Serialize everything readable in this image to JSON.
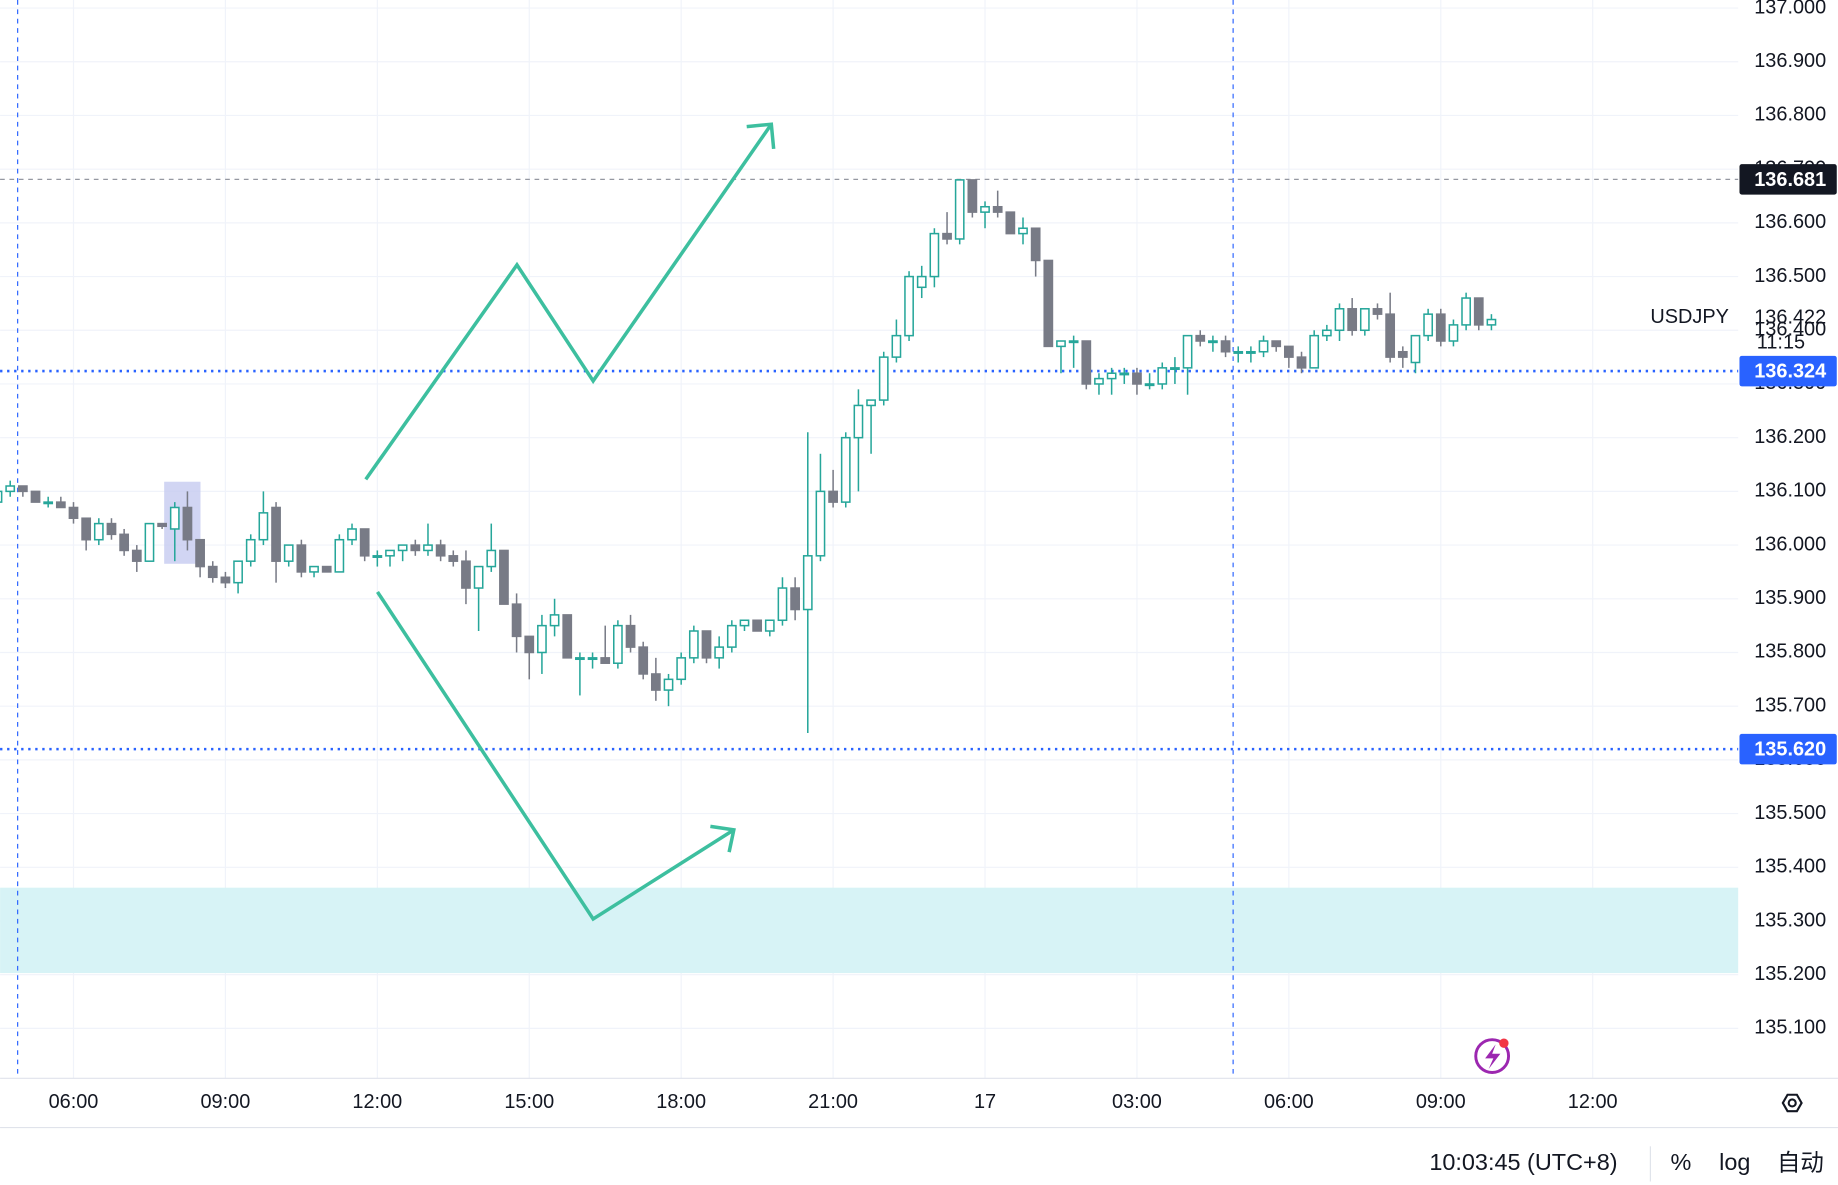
{
  "chart_data": {
    "type": "candlestick",
    "symbol": "USDJPY",
    "countdown": "11:15",
    "up_color": "#26a69a",
    "down_color": "#787b86",
    "xlim": [
      0.2,
      137.5
    ],
    "ylim": [
      135.007,
      137.015
    ],
    "xticks": [
      {
        "value": 6,
        "label": "06:00"
      },
      {
        "value": 18,
        "label": "09:00"
      },
      {
        "value": 30,
        "label": "12:00"
      },
      {
        "value": 42,
        "label": "15:00"
      },
      {
        "value": 54,
        "label": "18:00"
      },
      {
        "value": 66,
        "label": "21:00"
      },
      {
        "value": 78,
        "label": "17"
      },
      {
        "value": 90,
        "label": "03:00"
      },
      {
        "value": 102,
        "label": "06:00"
      },
      {
        "value": 114,
        "label": "09:00"
      },
      {
        "value": 126,
        "label": "12:00"
      }
    ],
    "yticks": [
      {
        "value": 135.1,
        "label": "135.100"
      },
      {
        "value": 135.2,
        "label": "135.200"
      },
      {
        "value": 135.3,
        "label": "135.300"
      },
      {
        "value": 135.4,
        "label": "135.400"
      },
      {
        "value": 135.5,
        "label": "135.500"
      },
      {
        "value": 135.6,
        "label": "135.600"
      },
      {
        "value": 135.7,
        "label": "135.700"
      },
      {
        "value": 135.8,
        "label": "135.800"
      },
      {
        "value": 135.9,
        "label": "135.900"
      },
      {
        "value": 136.0,
        "label": "136.000"
      },
      {
        "value": 136.1,
        "label": "136.100"
      },
      {
        "value": 136.2,
        "label": "136.200"
      },
      {
        "value": 136.3,
        "label": "136.300"
      },
      {
        "value": 136.4,
        "label": "136.400"
      },
      {
        "value": 136.5,
        "label": "136.500"
      },
      {
        "value": 136.6,
        "label": "136.600"
      },
      {
        "value": 136.7,
        "label": "136.700"
      },
      {
        "value": 136.8,
        "label": "136.800"
      },
      {
        "value": 136.9,
        "label": "136.900"
      },
      {
        "value": 137.0,
        "label": "137.000"
      }
    ],
    "grid": true,
    "open": [
      136.08,
      136.1,
      136.11,
      136.1,
      136.08,
      136.08,
      136.07,
      136.05,
      136.01,
      136.04,
      136.02,
      135.99,
      135.97,
      136.04,
      136.03,
      136.07,
      136.01,
      135.96,
      135.94,
      135.93,
      135.97,
      136.01,
      136.07,
      135.97,
      136.0,
      135.95,
      135.96,
      135.95,
      136.01,
      136.03,
      135.98,
      135.98,
      135.99,
      136.0,
      135.99,
      136.0,
      135.98,
      135.97,
      135.92,
      135.96,
      135.99,
      135.89,
      135.83,
      135.8,
      135.85,
      135.87,
      135.79,
      135.79,
      135.79,
      135.78,
      135.85,
      135.81,
      135.76,
      135.73,
      135.75,
      135.79,
      135.84,
      135.79,
      135.81,
      135.85,
      135.86,
      135.84,
      135.86,
      135.92,
      135.88,
      135.98,
      136.1,
      136.08,
      136.2,
      136.26,
      136.27,
      136.35,
      136.39,
      136.48,
      136.5,
      136.58,
      136.57,
      136.68,
      136.62,
      136.63,
      136.62,
      136.58,
      136.59,
      136.53,
      136.37,
      136.38,
      136.38,
      136.3,
      136.31,
      136.32,
      136.32,
      136.3,
      136.3,
      136.33,
      136.33,
      136.39,
      136.38,
      136.38,
      136.36,
      136.36,
      136.36,
      136.38,
      136.37,
      136.35,
      136.33,
      136.39,
      136.4,
      136.44,
      136.4,
      136.44,
      136.43,
      136.36,
      136.34,
      136.39,
      136.43,
      136.38,
      136.41,
      136.46,
      136.41
    ],
    "high": [
      136.11,
      136.12,
      136.11,
      136.1,
      136.09,
      136.09,
      136.08,
      136.05,
      136.05,
      136.05,
      136.03,
      136.0,
      136.04,
      136.04,
      136.08,
      136.1,
      136.01,
      135.97,
      135.95,
      135.97,
      136.02,
      136.1,
      136.08,
      136.0,
      136.01,
      135.96,
      135.96,
      136.02,
      136.04,
      136.03,
      135.99,
      135.99,
      136.0,
      136.01,
      136.04,
      136.01,
      135.99,
      135.99,
      135.96,
      136.04,
      135.99,
      135.91,
      135.83,
      135.87,
      135.9,
      135.87,
      135.8,
      135.8,
      135.85,
      135.86,
      135.87,
      135.82,
      135.79,
      135.76,
      135.8,
      135.85,
      135.84,
      135.83,
      135.86,
      135.86,
      135.86,
      135.86,
      135.94,
      135.94,
      136.21,
      136.17,
      136.14,
      136.21,
      136.29,
      136.27,
      136.36,
      136.42,
      136.51,
      136.52,
      136.59,
      136.62,
      136.68,
      136.68,
      136.64,
      136.66,
      136.62,
      136.61,
      136.59,
      136.53,
      136.38,
      136.39,
      136.38,
      136.32,
      136.33,
      136.33,
      136.33,
      136.32,
      136.34,
      136.35,
      136.39,
      136.4,
      136.39,
      136.39,
      136.37,
      136.37,
      136.39,
      136.38,
      136.37,
      136.36,
      136.4,
      136.41,
      136.45,
      136.46,
      136.44,
      136.45,
      136.47,
      136.37,
      136.39,
      136.44,
      136.44,
      136.42,
      136.47,
      136.46,
      136.43
    ],
    "low": [
      136.07,
      136.09,
      136.09,
      136.08,
      136.07,
      136.07,
      136.04,
      135.99,
      136.0,
      136.01,
      135.98,
      135.95,
      135.97,
      136.03,
      135.97,
      135.99,
      135.94,
      135.93,
      135.92,
      135.91,
      135.96,
      136.0,
      135.93,
      135.96,
      135.94,
      135.94,
      135.95,
      135.95,
      136.0,
      135.97,
      135.96,
      135.96,
      135.97,
      135.98,
      135.98,
      135.97,
      135.96,
      135.89,
      135.84,
      135.95,
      135.89,
      135.8,
      135.75,
      135.76,
      135.83,
      135.79,
      135.72,
      135.77,
      135.78,
      135.77,
      135.8,
      135.75,
      135.71,
      135.7,
      135.74,
      135.78,
      135.78,
      135.77,
      135.8,
      135.84,
      135.84,
      135.83,
      135.85,
      135.86,
      135.65,
      135.97,
      136.07,
      136.07,
      136.1,
      136.17,
      136.26,
      136.34,
      136.38,
      136.46,
      136.48,
      136.56,
      136.56,
      136.61,
      136.59,
      136.61,
      136.58,
      136.56,
      136.5,
      136.37,
      136.32,
      136.33,
      136.29,
      136.28,
      136.28,
      136.3,
      136.28,
      136.29,
      136.29,
      136.3,
      136.28,
      136.37,
      136.36,
      136.35,
      136.34,
      136.34,
      136.35,
      136.36,
      136.33,
      136.32,
      136.33,
      136.38,
      136.38,
      136.39,
      136.39,
      136.42,
      136.34,
      136.33,
      136.32,
      136.38,
      136.37,
      136.37,
      136.4,
      136.4,
      136.4
    ],
    "close": [
      136.1,
      136.11,
      136.1,
      136.08,
      136.08,
      136.07,
      136.05,
      136.01,
      136.04,
      136.02,
      135.99,
      135.97,
      136.04,
      136.035,
      136.07,
      136.01,
      135.96,
      135.94,
      135.93,
      135.97,
      136.01,
      136.06,
      135.97,
      136.0,
      135.95,
      135.96,
      135.95,
      136.01,
      136.03,
      135.98,
      135.98,
      135.99,
      136.0,
      135.99,
      136.0,
      135.98,
      135.97,
      135.92,
      135.96,
      135.99,
      135.89,
      135.83,
      135.8,
      135.85,
      135.87,
      135.79,
      135.79,
      135.79,
      135.78,
      135.85,
      135.81,
      135.76,
      135.73,
      135.75,
      135.79,
      135.84,
      135.79,
      135.81,
      135.85,
      135.86,
      135.84,
      135.86,
      135.92,
      135.88,
      135.98,
      136.1,
      136.08,
      136.2,
      136.26,
      136.27,
      136.35,
      136.39,
      136.5,
      136.5,
      136.58,
      136.57,
      136.68,
      136.62,
      136.63,
      136.62,
      136.58,
      136.59,
      136.53,
      136.37,
      136.38,
      136.38,
      136.3,
      136.31,
      136.32,
      136.32,
      136.3,
      136.3,
      136.33,
      136.33,
      136.39,
      136.38,
      136.38,
      136.36,
      136.36,
      136.36,
      136.38,
      136.37,
      136.35,
      136.33,
      136.39,
      136.4,
      136.44,
      136.4,
      136.44,
      136.43,
      136.35,
      136.35,
      136.39,
      136.43,
      136.38,
      136.41,
      136.46,
      136.41,
      136.42
    ],
    "last_price": 136.422,
    "price_lines": [
      {
        "value": 136.681,
        "label": "136.681",
        "color": "#131722",
        "line_color": "#9598a1"
      },
      {
        "value": 136.324,
        "label": "136.324",
        "color": "#2962ff",
        "line_color": "#2962ff"
      },
      {
        "value": 135.62,
        "label": "135.620",
        "color": "#2962ff",
        "line_color": "#2962ff"
      }
    ],
    "zone": {
      "top": 135.362,
      "bottom": 135.203,
      "color": "#d7f3f6"
    }
  },
  "status_bar": {
    "time": "10:03:45 (UTC+8)",
    "percent": "%",
    "log": "log",
    "auto": "自动"
  }
}
